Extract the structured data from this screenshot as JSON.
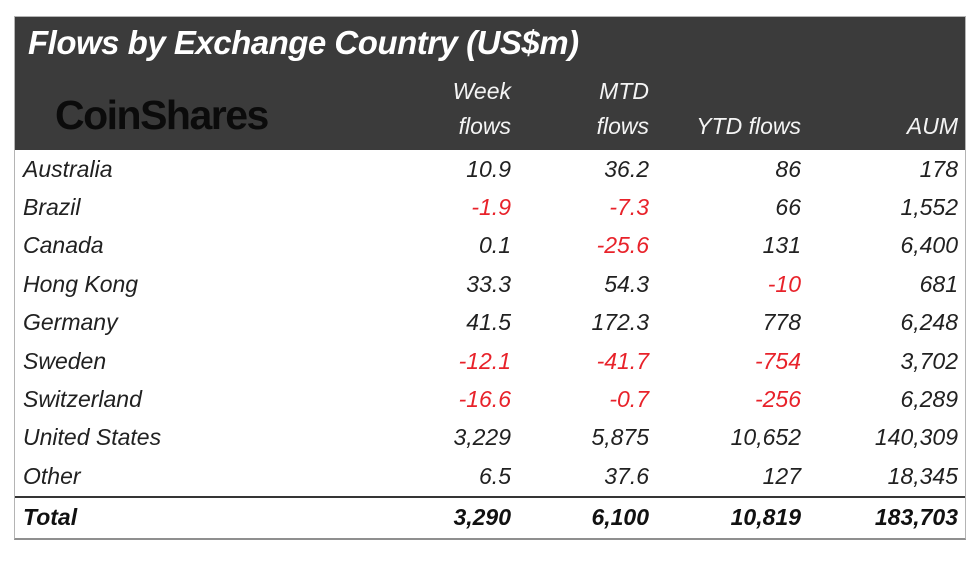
{
  "header": {
    "title": "Flows by Exchange Country (US$m)",
    "logo": "CoinShares",
    "columns": [
      {
        "line1": "Week",
        "line2": "flows"
      },
      {
        "line1": "MTD",
        "line2": "flows"
      },
      {
        "line1": "",
        "line2": "YTD flows"
      },
      {
        "line1": "",
        "line2": "AUM"
      }
    ]
  },
  "colors": {
    "header_bg": "#3b3b3b",
    "title_text": "#ffffff",
    "logo_text": "#0b0b0b",
    "body_text": "#212121",
    "negative": "#e8222a",
    "frame_border": "#b4b4b4",
    "total_separator": "#353535"
  },
  "table": {
    "rows": [
      {
        "country": "Australia",
        "week": "10.9",
        "mtd": "36.2",
        "ytd": "86",
        "aum": "178"
      },
      {
        "country": "Brazil",
        "week": "-1.9",
        "mtd": "-7.3",
        "ytd": "66",
        "aum": "1,552"
      },
      {
        "country": "Canada",
        "week": "0.1",
        "mtd": "-25.6",
        "ytd": "131",
        "aum": "6,400"
      },
      {
        "country": "Hong Kong",
        "week": "33.3",
        "mtd": "54.3",
        "ytd": "-10",
        "aum": "681"
      },
      {
        "country": "Germany",
        "week": "41.5",
        "mtd": "172.3",
        "ytd": "778",
        "aum": "6,248"
      },
      {
        "country": "Sweden",
        "week": "-12.1",
        "mtd": "-41.7",
        "ytd": "-754",
        "aum": "3,702"
      },
      {
        "country": "Switzerland",
        "week": "-16.6",
        "mtd": "-0.7",
        "ytd": "-256",
        "aum": "6,289"
      },
      {
        "country": "United States",
        "week": "3,229",
        "mtd": "5,875",
        "ytd": "10,652",
        "aum": "140,309"
      },
      {
        "country": "Other",
        "week": "6.5",
        "mtd": "37.6",
        "ytd": "127",
        "aum": "18,345"
      }
    ],
    "total": {
      "country": "Total",
      "week": "3,290",
      "mtd": "6,100",
      "ytd": "10,819",
      "aum": "183,703"
    }
  },
  "chart_data": {
    "type": "table",
    "title": "Flows by Exchange Country (US$m)",
    "columns": [
      "Country",
      "Week flows",
      "MTD flows",
      "YTD flows",
      "AUM"
    ],
    "rows": [
      [
        "Australia",
        10.9,
        36.2,
        86,
        178
      ],
      [
        "Brazil",
        -1.9,
        -7.3,
        66,
        1552
      ],
      [
        "Canada",
        0.1,
        -25.6,
        131,
        6400
      ],
      [
        "Hong Kong",
        33.3,
        54.3,
        -10,
        681
      ],
      [
        "Germany",
        41.5,
        172.3,
        778,
        6248
      ],
      [
        "Sweden",
        -12.1,
        -41.7,
        -754,
        3702
      ],
      [
        "Switzerland",
        -16.6,
        -0.7,
        -256,
        6289
      ],
      [
        "United States",
        3229,
        5875,
        10652,
        140309
      ],
      [
        "Other",
        6.5,
        37.6,
        127,
        18345
      ]
    ],
    "total": [
      "Total",
      3290,
      6100,
      10819,
      183703
    ],
    "negative_values_shown_in_red": true
  }
}
